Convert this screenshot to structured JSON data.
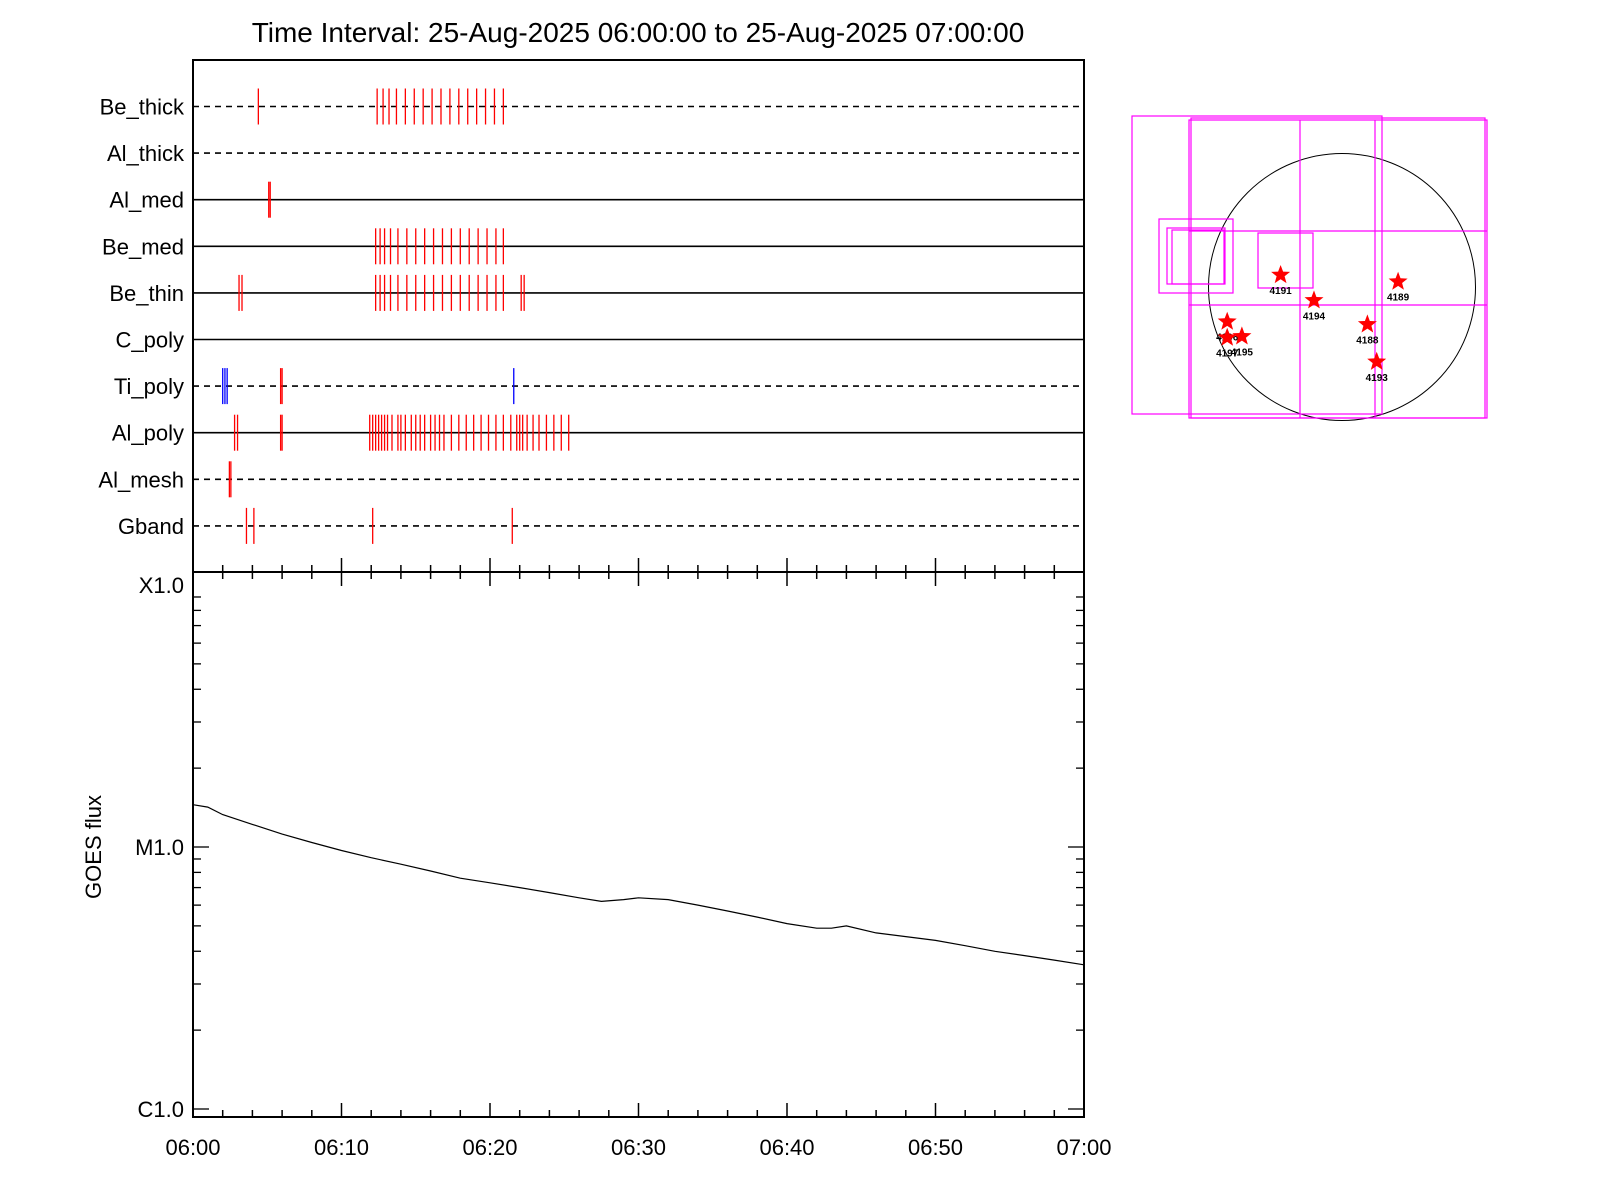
{
  "chart_data": [
    {
      "type": "timeline",
      "title": "Time Interval: 25-Aug-2025 06:00:00 to 25-Aug-2025 07:00:00",
      "x_range": [
        "06:00",
        "07:00"
      ],
      "line_styles": {
        "dashed": "no data / not observed",
        "solid": "observed"
      },
      "rows": [
        {
          "name": "Be_thick",
          "style": "dashed",
          "ticks_red": [
            4.4,
            12.4,
            12.8,
            13.2,
            13.7,
            14.3,
            14.9,
            15.5,
            16.1,
            16.7,
            17.3,
            17.9,
            18.5,
            19.1,
            19.7,
            20.3,
            20.9
          ],
          "ticks_blue": []
        },
        {
          "name": "Al_thick",
          "style": "dashed",
          "ticks_red": [],
          "ticks_blue": []
        },
        {
          "name": "Al_med",
          "style": "solid",
          "ticks_red": [
            5.1,
            5.2
          ],
          "ticks_blue": []
        },
        {
          "name": "Be_med",
          "style": "solid",
          "ticks_red": [
            12.3,
            12.6,
            12.9,
            13.3,
            13.8,
            14.4,
            15.0,
            15.6,
            16.2,
            16.8,
            17.4,
            18.0,
            18.6,
            19.2,
            19.8,
            20.4,
            20.9
          ],
          "ticks_blue": []
        },
        {
          "name": "Be_thin",
          "style": "solid",
          "ticks_red": [
            3.1,
            3.3,
            12.3,
            12.6,
            12.9,
            13.3,
            13.8,
            14.4,
            15.0,
            15.6,
            16.2,
            16.8,
            17.4,
            18.0,
            18.6,
            19.2,
            19.8,
            20.4,
            20.9,
            22.1,
            22.3
          ],
          "ticks_blue": []
        },
        {
          "name": "C_poly",
          "style": "solid",
          "ticks_red": [],
          "ticks_blue": []
        },
        {
          "name": "Ti_poly",
          "style": "dashed",
          "ticks_red": [
            5.9,
            6.0
          ],
          "ticks_blue": [
            2.0,
            2.15,
            2.3,
            21.6
          ]
        },
        {
          "name": "Al_poly",
          "style": "solid",
          "ticks_red": [
            2.8,
            3.0,
            5.9,
            6.0,
            11.9,
            12.1,
            12.3,
            12.5,
            12.7,
            12.9,
            13.1,
            13.4,
            13.8,
            14.0,
            14.3,
            14.7,
            15.0,
            15.3,
            15.6,
            16.0,
            16.3,
            16.6,
            16.9,
            17.4,
            17.9,
            18.4,
            18.9,
            19.4,
            19.9,
            20.4,
            20.9,
            21.4,
            21.8,
            22.0,
            22.2,
            22.5,
            22.9,
            23.3,
            23.8,
            24.3,
            24.8,
            25.3
          ],
          "ticks_blue": []
        },
        {
          "name": "Al_mesh",
          "style": "dashed",
          "ticks_red": [
            2.45,
            2.55
          ],
          "ticks_blue": []
        },
        {
          "name": "Gband",
          "style": "dashed",
          "ticks_red": [
            3.6,
            4.1,
            12.1,
            21.5
          ],
          "ticks_blue": []
        }
      ]
    },
    {
      "type": "line",
      "ylabel": "GOES flux",
      "y_scale": "log",
      "y_range": [
        "C1.0",
        "X1.0"
      ],
      "y_ticks": [
        "X1.0",
        "M1.0",
        "C1.0"
      ],
      "x_ticks": [
        "06:00",
        "06:10",
        "06:20",
        "06:30",
        "06:40",
        "06:50",
        "07:00"
      ],
      "x_range": [
        "06:00",
        "07:00"
      ],
      "series": [
        {
          "color": "#000000",
          "points": [
            [
              "06:00",
              "1.45e-5"
            ],
            [
              "06:01",
              "1.42e-5"
            ],
            [
              "06:02",
              "1.33e-5"
            ],
            [
              "06:04",
              "1.22e-5"
            ],
            [
              "06:06",
              "1.12e-5"
            ],
            [
              "06:08",
              "1.04e-5"
            ],
            [
              "06:10",
              "0.97e-5"
            ],
            [
              "06:12",
              "0.91e-5"
            ],
            [
              "06:14",
              "0.86e-5"
            ],
            [
              "06:16",
              "0.81e-5"
            ],
            [
              "06:18",
              "0.76e-5"
            ],
            [
              "06:20",
              "0.73e-5"
            ],
            [
              "06:22",
              "0.70e-5"
            ],
            [
              "06:24",
              "0.67e-5"
            ],
            [
              "06:26",
              "0.64e-5"
            ],
            [
              "06:27.5",
              "0.62e-5"
            ],
            [
              "06:29",
              "0.63e-5"
            ],
            [
              "06:30",
              "0.64e-5"
            ],
            [
              "06:32",
              "0.63e-5"
            ],
            [
              "06:34",
              "0.60e-5"
            ],
            [
              "06:36",
              "0.57e-5"
            ],
            [
              "06:38",
              "0.54e-5"
            ],
            [
              "06:40",
              "0.51e-5"
            ],
            [
              "06:42",
              "0.49e-5"
            ],
            [
              "06:43",
              "0.49e-5"
            ],
            [
              "06:44",
              "0.50e-5"
            ],
            [
              "06:46",
              "0.47e-5"
            ],
            [
              "06:48",
              "0.455e-5"
            ],
            [
              "06:50",
              "0.44e-5"
            ],
            [
              "06:52",
              "0.42e-5"
            ],
            [
              "06:54",
              "0.40e-5"
            ],
            [
              "06:56",
              "0.385e-5"
            ],
            [
              "06:58",
              "0.37e-5"
            ],
            [
              "07:00",
              "0.355e-5"
            ]
          ]
        }
      ]
    },
    {
      "type": "scatter",
      "disk_color": "#000000",
      "fov_color": "#ff00ff",
      "marker_color": "#ff0000",
      "active_regions": [
        {
          "id": "4191",
          "x": -0.46,
          "y": 0.09
        },
        {
          "id": "4194",
          "x": -0.21,
          "y": -0.1
        },
        {
          "id": "4189",
          "x": 0.42,
          "y": 0.04
        },
        {
          "id": "4188",
          "x": 0.19,
          "y": -0.28
        },
        {
          "id": "4193",
          "x": 0.26,
          "y": -0.56
        },
        {
          "id": "4196",
          "x": -0.86,
          "y": -0.26
        },
        {
          "id": "4197",
          "x": -0.86,
          "y": -0.38
        },
        {
          "id": "4195",
          "x": -0.75,
          "y": -0.37
        }
      ]
    }
  ]
}
